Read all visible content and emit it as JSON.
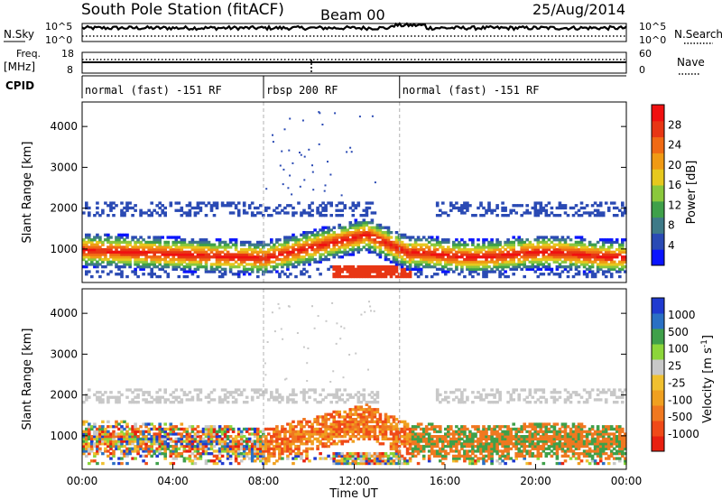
{
  "header": {
    "title": "South Pole Station (fitACF)",
    "beam": "Beam 00",
    "date": "25/Aug/2014"
  },
  "strip_labels": {
    "nsky": "N.Sky",
    "nsky_ticks": [
      "10^5",
      "10^0"
    ],
    "nsearch": "N.Search",
    "nsearch_ticks": [
      "10^5",
      "10^0"
    ],
    "freq": "Freq.",
    "freq_unit": "[MHz]",
    "freq_ticks": [
      "18",
      "8"
    ],
    "nave": "Nave",
    "nave_ticks": [
      "60",
      "0"
    ],
    "cpid": "CPID"
  },
  "cpid_segments": [
    {
      "label": "normal (fast) -151 RF",
      "start_hour": 0,
      "end_hour": 8
    },
    {
      "label": "rbsp 200 RF",
      "start_hour": 8,
      "end_hour": 14
    },
    {
      "label": "normal (fast) -151 RF",
      "start_hour": 14,
      "end_hour": 24
    }
  ],
  "x_axis": {
    "label": "Time UT",
    "ticks": [
      "00:00",
      "04:00",
      "08:00",
      "12:00",
      "16:00",
      "20:00",
      "00:00"
    ],
    "tick_hours": [
      0,
      4,
      8,
      12,
      16,
      20,
      24
    ]
  },
  "chart_data": [
    {
      "type": "heatmap",
      "title": "",
      "xlabel": "Time UT",
      "ylabel": "Slant Range [km]",
      "xlim": [
        0,
        24
      ],
      "ylim": [
        180,
        4600
      ],
      "yticks": [
        1000,
        2000,
        3000,
        4000
      ],
      "colorbar": {
        "label": "Power [dB]",
        "ticks": [
          4,
          8,
          12,
          16,
          20,
          24,
          28
        ],
        "range": [
          0,
          32
        ],
        "colors": [
          "#0a14ff",
          "#2a4ab4",
          "#3e7a88",
          "#3fa04a",
          "#8ac83c",
          "#e6c81e",
          "#f09a14",
          "#f06a14",
          "#e83614",
          "#f01010"
        ]
      },
      "bands": [
        {
          "name": "main_ionospheric",
          "range_km": [
            600,
            1500
          ],
          "level_db": 26
        },
        {
          "name": "upper",
          "range_km": [
            1700,
            2200
          ],
          "level_db": 6
        },
        {
          "name": "lower",
          "range_km": [
            350,
            550
          ],
          "level_db": 5
        }
      ]
    },
    {
      "type": "heatmap",
      "title": "",
      "xlabel": "Time UT",
      "ylabel": "Slant Range [km]",
      "xlim": [
        0,
        24
      ],
      "ylim": [
        180,
        4600
      ],
      "yticks": [
        1000,
        2000,
        3000,
        4000
      ],
      "colorbar": {
        "label": "Velocity [m s^-1]",
        "ticks": [
          "1000",
          "500",
          "100",
          "25",
          "-25",
          "-100",
          "-500",
          "-1000"
        ],
        "colors": [
          "#1f3ad0",
          "#2a70c4",
          "#3fa04a",
          "#8cd63a",
          "#c8c8c8",
          "#f0c030",
          "#f0a020",
          "#f07820",
          "#f04a18",
          "#e82010"
        ]
      },
      "bands": [
        {
          "name": "main_ionospheric",
          "range_km": [
            500,
            1500
          ],
          "velocity_ms": -300
        },
        {
          "name": "upper",
          "range_km": [
            1800,
            2100
          ],
          "velocity_ms": 0
        }
      ]
    }
  ],
  "colors": {
    "grid_dashed": "#b0b0b0",
    "frame": "#000000"
  }
}
